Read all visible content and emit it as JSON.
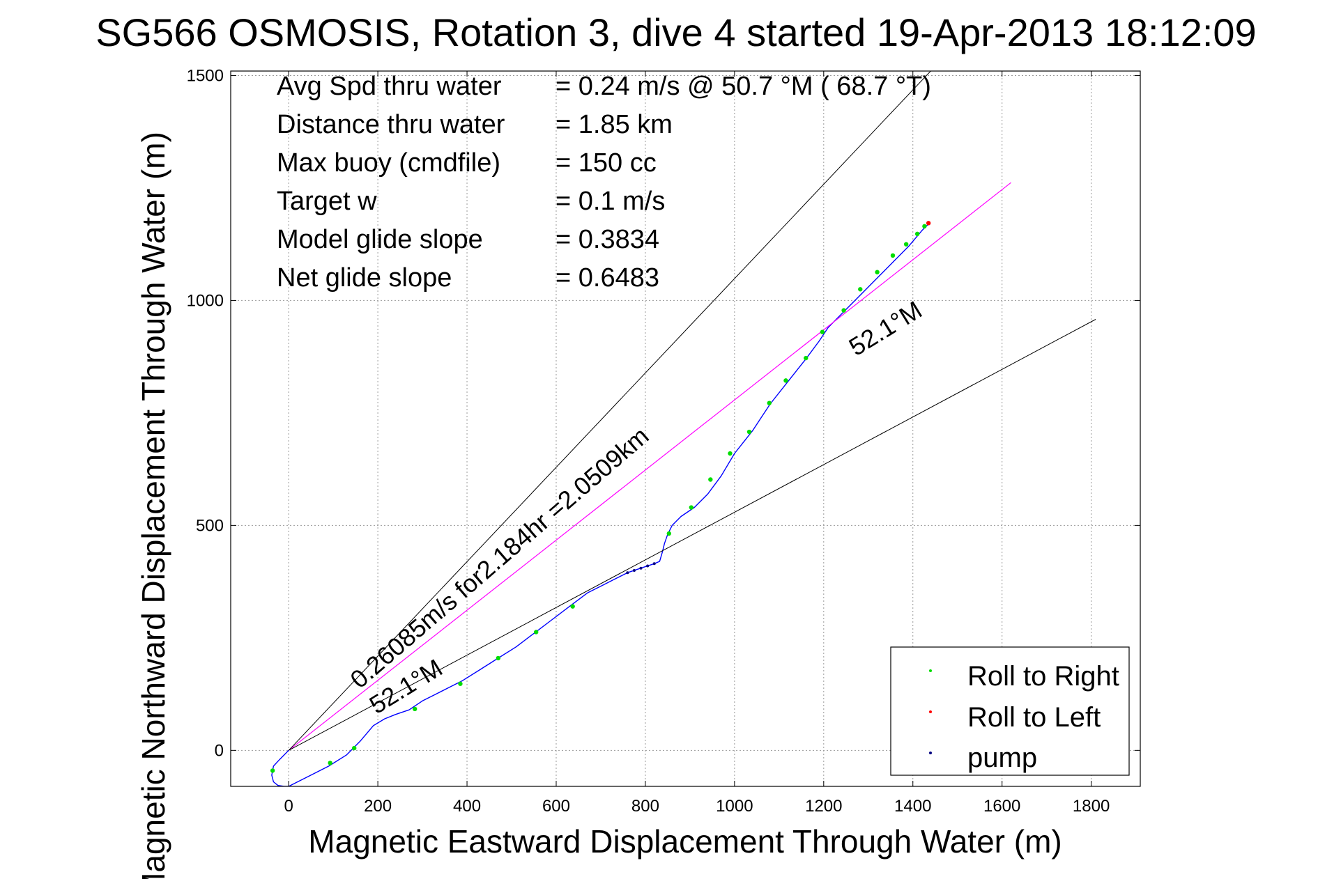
{
  "chart_data": {
    "type": "line",
    "title": "SG566 OSMOSIS, Rotation 3, dive 4 started 19-Apr-2013 18:12:09",
    "xlabel": "Magnetic Eastward Displacement Through Water (m)",
    "ylabel": "Magnetic Northward Displacement Through Water (m)",
    "xlim": [
      -130,
      1910
    ],
    "ylim": [
      -80,
      1510
    ],
    "xticks": [
      0,
      200,
      400,
      600,
      800,
      1000,
      1200,
      1400,
      1600,
      1800
    ],
    "yticks": [
      0,
      500,
      1000,
      1500
    ],
    "grid": true,
    "legend_position": "bottom-right",
    "stats": [
      {
        "label": "Avg Spd thru water",
        "value": "=  0.24 m/s @  50.7 °M ( 68.7 °T)"
      },
      {
        "label": "Distance thru water",
        "value": "=  1.85 km"
      },
      {
        "label": "Max buoy (cmdfile)",
        "value": "= 150 cc"
      },
      {
        "label": "Target w",
        "value": "= 0.1 m/s"
      },
      {
        "label": "Model glide slope",
        "value": "= 0.3834"
      },
      {
        "label": "Net glide slope",
        "value": "= 0.6483"
      }
    ],
    "annotations": {
      "speed_text": "0.26085m/s for2.184hr =2.0509km",
      "heading_lower": "52.1°M",
      "heading_upper": "52.1°M"
    },
    "legend": [
      {
        "name": "Roll to Right",
        "color": "#00dd00"
      },
      {
        "name": "Roll to Left",
        "color": "#ff0000"
      },
      {
        "name": "pump",
        "color": "#000080"
      }
    ],
    "colors": {
      "track": "#0000ff",
      "reference": "#ff00ff",
      "bounds": "#000000"
    },
    "series": [
      {
        "kind": "track",
        "x": [
          0,
          -20,
          -34,
          -38,
          -34,
          -24,
          -10,
          0,
          20,
          50,
          90,
          130,
          160,
          190,
          215,
          240,
          270,
          300,
          330,
          360,
          390,
          430,
          470,
          510,
          550,
          590,
          630,
          670,
          700,
          730,
          760,
          790,
          820,
          832,
          838,
          843,
          850,
          860,
          880,
          910,
          940,
          970,
          1000,
          1040,
          1080,
          1120,
          1160,
          1190,
          1210,
          1240,
          1280,
          1320,
          1360,
          1390,
          1420,
          1435
        ],
        "y": [
          0,
          -20,
          -35,
          -55,
          -70,
          -78,
          -80,
          -80,
          -70,
          -55,
          -35,
          -10,
          20,
          55,
          70,
          80,
          90,
          110,
          125,
          140,
          155,
          180,
          205,
          230,
          260,
          290,
          320,
          350,
          365,
          380,
          395,
          405,
          415,
          420,
          440,
          460,
          480,
          500,
          520,
          540,
          570,
          610,
          660,
          710,
          770,
          820,
          870,
          910,
          940,
          970,
          1010,
          1050,
          1090,
          1120,
          1155,
          1170
        ]
      },
      {
        "kind": "reference",
        "x": [
          0,
          1620
        ],
        "y": [
          0,
          1262
        ]
      },
      {
        "kind": "bound-upper",
        "x": [
          0,
          1440
        ],
        "y": [
          0,
          1510
        ]
      },
      {
        "kind": "bound-lower",
        "x": [
          0,
          1810
        ],
        "y": [
          0,
          958
        ]
      }
    ],
    "markers": {
      "roll_right": {
        "x": [
          -36,
          93,
          147,
          283,
          385,
          470,
          555,
          637,
          853,
          903,
          946,
          990,
          1033,
          1078,
          1115,
          1160,
          1197,
          1245,
          1282,
          1320,
          1355,
          1385,
          1410,
          1426
        ],
        "y": [
          -45,
          -28,
          5,
          92,
          148,
          205,
          263,
          320,
          482,
          540,
          602,
          660,
          708,
          772,
          822,
          872,
          930,
          978,
          1025,
          1063,
          1100,
          1125,
          1148,
          1165
        ]
      },
      "roll_left": {
        "x": [
          1435
        ],
        "y": [
          1172
        ]
      },
      "pump": {
        "x": [
          760,
          775,
          790,
          805,
          820
        ],
        "y": [
          395,
          400,
          405,
          410,
          415
        ]
      }
    }
  }
}
